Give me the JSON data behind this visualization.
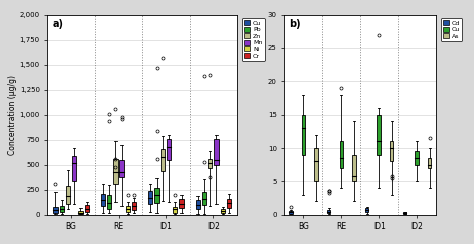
{
  "subplot_a": {
    "title": "a)",
    "ylabel": "Concentration (μg/g)",
    "ylim": [
      0,
      2000
    ],
    "yticks": [
      0,
      250,
      500,
      750,
      1000,
      1250,
      1500,
      1750,
      2000
    ],
    "ytick_labels": [
      "0",
      "250",
      "500",
      "750",
      "1,000",
      "1,250",
      "1,500",
      "1,750",
      "2,000"
    ],
    "categories": [
      "BG",
      "RE",
      "ID1",
      "ID2"
    ],
    "elements": [
      "Cu",
      "Pb",
      "Zn",
      "Mn",
      "Ni",
      "Cr"
    ],
    "colors": [
      "#1f4fa0",
      "#2ca02c",
      "#bcbd8a",
      "#8b35c7",
      "#d4d445",
      "#cc2222"
    ],
    "box_data": {
      "Cu": {
        "BG": {
          "whislo": 5,
          "q1": 15,
          "med": 45,
          "q3": 75,
          "whishi": 230,
          "fliers": [
            310
          ]
        },
        "RE": {
          "whislo": 20,
          "q1": 90,
          "med": 150,
          "q3": 210,
          "whishi": 310,
          "fliers": []
        },
        "ID1": {
          "whislo": 25,
          "q1": 110,
          "med": 170,
          "q3": 235,
          "whishi": 310,
          "fliers": []
        },
        "ID2": {
          "whislo": 10,
          "q1": 55,
          "med": 95,
          "q3": 145,
          "whishi": 190,
          "fliers": []
        }
      },
      "Pb": {
        "BG": {
          "whislo": 5,
          "q1": 25,
          "med": 55,
          "q3": 90,
          "whishi": 150,
          "fliers": []
        },
        "RE": {
          "whislo": 15,
          "q1": 60,
          "med": 120,
          "q3": 195,
          "whishi": 300,
          "fliers": [
            940,
            1010
          ]
        },
        "ID1": {
          "whislo": 18,
          "q1": 120,
          "med": 195,
          "q3": 270,
          "whishi": 370,
          "fliers": [
            560,
            840,
            1470
          ]
        },
        "ID2": {
          "whislo": 10,
          "q1": 95,
          "med": 155,
          "q3": 225,
          "whishi": 355,
          "fliers": [
            530,
            1390
          ]
        }
      },
      "Zn": {
        "BG": {
          "whislo": 60,
          "q1": 110,
          "med": 185,
          "q3": 290,
          "whishi": 450,
          "fliers": []
        },
        "RE": {
          "whislo": 130,
          "q1": 310,
          "med": 430,
          "q3": 555,
          "whishi": 740,
          "fliers": [
            480,
            560,
            1060
          ]
        },
        "ID1": {
          "whislo": 140,
          "q1": 440,
          "med": 575,
          "q3": 655,
          "whishi": 790,
          "fliers": [
            1565
          ]
        },
        "ID2": {
          "whislo": 90,
          "q1": 465,
          "med": 515,
          "q3": 555,
          "whishi": 640,
          "fliers": [
            380,
            1400
          ]
        }
      },
      "Mn": {
        "BG": {
          "whislo": 110,
          "q1": 340,
          "med": 515,
          "q3": 590,
          "whishi": 670,
          "fliers": []
        },
        "RE": {
          "whislo": 90,
          "q1": 375,
          "med": 430,
          "q3": 545,
          "whishi": 695,
          "fliers": [
            960,
            975
          ]
        },
        "ID1": {
          "whislo": 125,
          "q1": 545,
          "med": 680,
          "q3": 755,
          "whishi": 800,
          "fliers": []
        },
        "ID2": {
          "whislo": 105,
          "q1": 500,
          "med": 548,
          "q3": 755,
          "whishi": 795,
          "fliers": []
        }
      },
      "Ni": {
        "BG": {
          "whislo": 5,
          "q1": 12,
          "med": 22,
          "q3": 38,
          "whishi": 65,
          "fliers": []
        },
        "RE": {
          "whislo": 10,
          "q1": 28,
          "med": 58,
          "q3": 88,
          "whishi": 125,
          "fliers": [
            195
          ]
        },
        "ID1": {
          "whislo": 10,
          "q1": 22,
          "med": 58,
          "q3": 78,
          "whishi": 125,
          "fliers": [
            195
          ]
        },
        "ID2": {
          "whislo": 5,
          "q1": 18,
          "med": 33,
          "q3": 58,
          "whishi": 78,
          "fliers": []
        }
      },
      "Cr": {
        "BG": {
          "whislo": 10,
          "q1": 28,
          "med": 62,
          "q3": 98,
          "whishi": 128,
          "fliers": []
        },
        "RE": {
          "whislo": 14,
          "q1": 52,
          "med": 88,
          "q3": 128,
          "whishi": 168,
          "fliers": [
            198
          ]
        },
        "ID1": {
          "whislo": 18,
          "q1": 68,
          "med": 108,
          "q3": 158,
          "whishi": 198,
          "fliers": []
        },
        "ID2": {
          "whislo": 14,
          "q1": 72,
          "med": 118,
          "q3": 158,
          "whishi": 208,
          "fliers": []
        }
      }
    }
  },
  "subplot_b": {
    "title": "b)",
    "ylim": [
      0,
      30
    ],
    "yticks": [
      0,
      5,
      10,
      15,
      20,
      25,
      30
    ],
    "ytick_labels": [
      "0",
      "5",
      "10",
      "15",
      "20",
      "25",
      "30"
    ],
    "categories": [
      "BG",
      "RE",
      "ID1",
      "ID2"
    ],
    "elements": [
      "Cd",
      "Cu",
      "As"
    ],
    "colors": [
      "#1f4fa0",
      "#2ca02c",
      "#bcbd8a"
    ],
    "box_data": {
      "Cd": {
        "BG": {
          "whislo": 0.05,
          "q1": 0.15,
          "med": 0.35,
          "q3": 0.55,
          "whishi": 0.75,
          "fliers": [
            1.1
          ]
        },
        "RE": {
          "whislo": 0.05,
          "q1": 0.2,
          "med": 0.45,
          "q3": 0.75,
          "whishi": 0.95,
          "fliers": [
            3.2,
            3.5,
            3.6
          ]
        },
        "ID1": {
          "whislo": 0.15,
          "q1": 0.45,
          "med": 0.75,
          "q3": 0.95,
          "whishi": 1.2,
          "fliers": []
        },
        "ID2": {
          "whislo": 0.05,
          "q1": 0.15,
          "med": 0.25,
          "q3": 0.35,
          "whishi": 0.45,
          "fliers": []
        }
      },
      "Cu": {
        "BG": {
          "whislo": 3,
          "q1": 9,
          "med": 13,
          "q3": 15,
          "whishi": 18,
          "fliers": []
        },
        "RE": {
          "whislo": 4,
          "q1": 7,
          "med": 8.5,
          "q3": 11,
          "whishi": 18,
          "fliers": [
            19
          ]
        },
        "ID1": {
          "whislo": 4,
          "q1": 9,
          "med": 11,
          "q3": 15,
          "whishi": 16,
          "fliers": [
            27
          ]
        },
        "ID2": {
          "whislo": 5,
          "q1": 7.5,
          "med": 8.5,
          "q3": 9.5,
          "whishi": 11,
          "fliers": []
        }
      },
      "As": {
        "BG": {
          "whislo": 2,
          "q1": 5,
          "med": 8,
          "q3": 10,
          "whishi": 12,
          "fliers": []
        },
        "RE": {
          "whislo": 2,
          "q1": 5,
          "med": 5.8,
          "q3": 9,
          "whishi": 14,
          "fliers": []
        },
        "ID1": {
          "whislo": 3,
          "q1": 8,
          "med": 10,
          "q3": 11,
          "whishi": 14,
          "fliers": [
            5.5,
            5.8
          ]
        },
        "ID2": {
          "whislo": 4,
          "q1": 7,
          "med": 7.5,
          "q3": 8.5,
          "whishi": 10,
          "fliers": [
            11.5
          ]
        }
      }
    }
  },
  "outer_bg": "#d8d8d8",
  "inner_bg": "#ffffff",
  "box_width": 0.09,
  "linewidth": 0.6
}
